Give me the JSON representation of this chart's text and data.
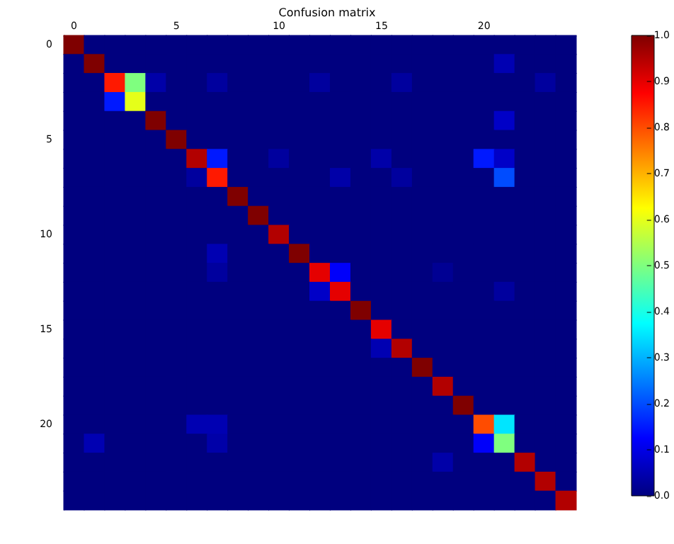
{
  "chart_data": {
    "type": "heatmap",
    "title": "Confusion matrix",
    "categories": [
      "0",
      null,
      null,
      null,
      null,
      "5",
      null,
      null,
      null,
      null,
      "10",
      null,
      null,
      null,
      null,
      "15",
      null,
      null,
      null,
      null,
      "20",
      null,
      null,
      null,
      null
    ],
    "y_categories": [
      "0",
      null,
      null,
      null,
      null,
      "5",
      null,
      null,
      null,
      null,
      "10",
      null,
      null,
      null,
      null,
      "15",
      null,
      null,
      null,
      null,
      "20",
      null,
      null,
      null,
      null
    ],
    "cells": [
      [
        1,
        0,
        0,
        0,
        0,
        0,
        0,
        0,
        0,
        0,
        0,
        0,
        0,
        0,
        0,
        0,
        0,
        0,
        0,
        0,
        0,
        0,
        0,
        0,
        0
      ],
      [
        0,
        1,
        0,
        0,
        0,
        0,
        0,
        0,
        0,
        0,
        0,
        0,
        0,
        0,
        0,
        0,
        0,
        0,
        0,
        0,
        0,
        0.05,
        0,
        0,
        0
      ],
      [
        0,
        0,
        0.85,
        0.5,
        0.04,
        0,
        0,
        0.03,
        0,
        0,
        0,
        0,
        0.03,
        0,
        0,
        0,
        0.03,
        0,
        0,
        0,
        0,
        0,
        0,
        0.03,
        0
      ],
      [
        0,
        0,
        0.15,
        0.6,
        0,
        0,
        0,
        0,
        0,
        0,
        0,
        0,
        0,
        0,
        0,
        0,
        0,
        0,
        0,
        0,
        0,
        0,
        0,
        0,
        0
      ],
      [
        0,
        0,
        0,
        0,
        1,
        0,
        0,
        0,
        0,
        0,
        0,
        0,
        0,
        0,
        0,
        0,
        0,
        0,
        0,
        0,
        0,
        0.07,
        0,
        0,
        0
      ],
      [
        0,
        0,
        0,
        0,
        0,
        1,
        0,
        0,
        0,
        0,
        0,
        0,
        0,
        0,
        0,
        0,
        0,
        0,
        0,
        0,
        0,
        0,
        0,
        0,
        0
      ],
      [
        0,
        0,
        0,
        0,
        0,
        0,
        0.95,
        0.15,
        0,
        0,
        0.03,
        0,
        0,
        0,
        0,
        0.04,
        0,
        0,
        0,
        0,
        0.15,
        0.07,
        0,
        0,
        0
      ],
      [
        0,
        0,
        0,
        0,
        0,
        0,
        0.03,
        0.85,
        0,
        0,
        0,
        0,
        0,
        0.04,
        0,
        0,
        0.03,
        0,
        0,
        0,
        0,
        0.2,
        0,
        0,
        0
      ],
      [
        0,
        0,
        0,
        0,
        0,
        0,
        0,
        0,
        1,
        0,
        0,
        0,
        0,
        0,
        0,
        0,
        0,
        0,
        0,
        0,
        0,
        0,
        0,
        0,
        0
      ],
      [
        0,
        0,
        0,
        0,
        0,
        0,
        0,
        0,
        0,
        1,
        0,
        0,
        0,
        0,
        0,
        0,
        0,
        0,
        0,
        0,
        0,
        0,
        0,
        0,
        0
      ],
      [
        0,
        0,
        0,
        0,
        0,
        0,
        0,
        0,
        0,
        0,
        0.95,
        0,
        0,
        0,
        0,
        0,
        0,
        0,
        0,
        0,
        0,
        0,
        0,
        0,
        0
      ],
      [
        0,
        0,
        0,
        0,
        0,
        0,
        0,
        0.05,
        0,
        0,
        0,
        1,
        0,
        0,
        0,
        0,
        0,
        0,
        0,
        0,
        0,
        0,
        0,
        0,
        0
      ],
      [
        0,
        0,
        0,
        0,
        0,
        0,
        0,
        0.03,
        0,
        0,
        0,
        0,
        0.9,
        0.12,
        0,
        0,
        0,
        0,
        0.02,
        0,
        0,
        0,
        0,
        0,
        0
      ],
      [
        0,
        0,
        0,
        0,
        0,
        0,
        0,
        0,
        0,
        0,
        0,
        0,
        0.07,
        0.9,
        0,
        0,
        0,
        0,
        0,
        0,
        0,
        0.03,
        0,
        0,
        0
      ],
      [
        0,
        0,
        0,
        0,
        0,
        0,
        0,
        0,
        0,
        0,
        0,
        0,
        0,
        0,
        1,
        0,
        0,
        0,
        0,
        0,
        0,
        0,
        0,
        0,
        0
      ],
      [
        0,
        0,
        0,
        0,
        0,
        0,
        0,
        0,
        0,
        0,
        0,
        0,
        0,
        0,
        0,
        0.9,
        0,
        0,
        0,
        0,
        0,
        0,
        0,
        0,
        0
      ],
      [
        0,
        0,
        0,
        0,
        0,
        0,
        0,
        0,
        0,
        0,
        0,
        0,
        0,
        0,
        0,
        0.05,
        0.95,
        0,
        0,
        0,
        0,
        0,
        0,
        0,
        0
      ],
      [
        0,
        0,
        0,
        0,
        0,
        0,
        0,
        0,
        0,
        0,
        0,
        0,
        0,
        0,
        0,
        0,
        0,
        1,
        0,
        0,
        0,
        0,
        0,
        0,
        0
      ],
      [
        0,
        0,
        0,
        0,
        0,
        0,
        0,
        0,
        0,
        0,
        0,
        0,
        0,
        0,
        0,
        0,
        0,
        0,
        0.95,
        0,
        0,
        0,
        0,
        0,
        0
      ],
      [
        0,
        0,
        0,
        0,
        0,
        0,
        0,
        0,
        0,
        0,
        0,
        0,
        0,
        0,
        0,
        0,
        0,
        0,
        0,
        1,
        0,
        0,
        0,
        0,
        0
      ],
      [
        0,
        0,
        0,
        0,
        0,
        0,
        0.05,
        0.05,
        0,
        0,
        0,
        0,
        0,
        0,
        0,
        0,
        0,
        0,
        0,
        0,
        0.8,
        0.35,
        0,
        0,
        0
      ],
      [
        0,
        0.05,
        0,
        0,
        0,
        0,
        0,
        0.04,
        0,
        0,
        0,
        0,
        0,
        0,
        0,
        0,
        0,
        0,
        0,
        0,
        0.12,
        0.5,
        0,
        0,
        0
      ],
      [
        0,
        0,
        0,
        0,
        0,
        0,
        0,
        0,
        0,
        0,
        0,
        0,
        0,
        0,
        0,
        0,
        0,
        0,
        0.04,
        0,
        0,
        0,
        0.95,
        0,
        0
      ],
      [
        0,
        0,
        0,
        0,
        0,
        0,
        0,
        0,
        0,
        0,
        0,
        0,
        0,
        0,
        0,
        0,
        0,
        0,
        0,
        0,
        0,
        0,
        0,
        0.95,
        0
      ],
      [
        0,
        0,
        0,
        0,
        0,
        0,
        0,
        0,
        0,
        0,
        0,
        0,
        0,
        0,
        0,
        0,
        0,
        0,
        0,
        0,
        0,
        0,
        0,
        0,
        0.95
      ]
    ],
    "clim": [
      0,
      1
    ],
    "cticks": [
      {
        "value": 0,
        "label": "0.0"
      },
      {
        "value": 0.1,
        "label": "0.1"
      },
      {
        "value": 0.2,
        "label": "0.2"
      },
      {
        "value": 0.3,
        "label": "0.3"
      },
      {
        "value": 0.4,
        "label": "0.4"
      },
      {
        "value": 0.5,
        "label": "0.5"
      },
      {
        "value": 0.6,
        "label": "0.6"
      },
      {
        "value": 0.7,
        "label": "0.7"
      },
      {
        "value": 0.8,
        "label": "0.8"
      },
      {
        "value": 0.9,
        "label": "0.9"
      },
      {
        "value": 1,
        "label": "1.0"
      }
    ]
  }
}
